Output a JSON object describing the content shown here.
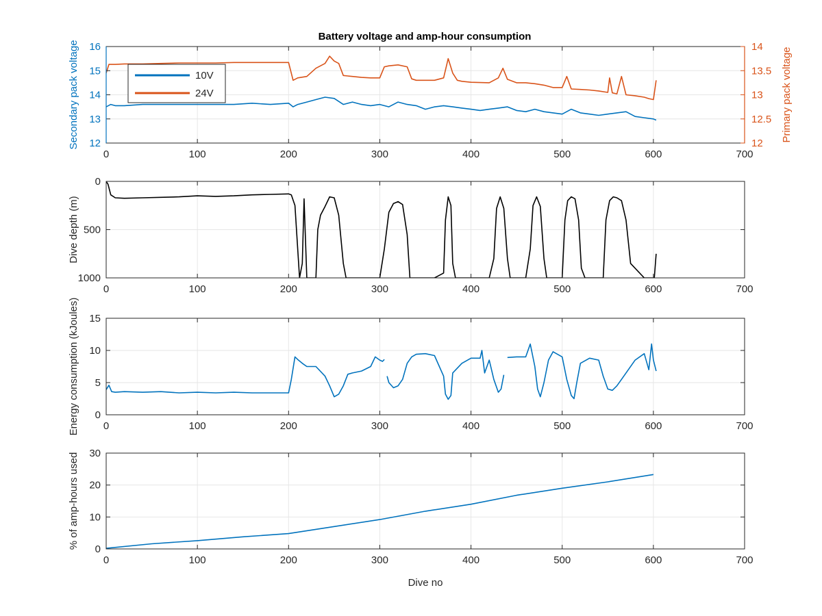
{
  "figure": {
    "title": "Battery voltage and amp-hour consumption",
    "background": "#ffffff"
  },
  "colors": {
    "blue": "#0072BD",
    "orange": "#D95319",
    "black": "#000000",
    "grid": "#e6e6e6",
    "axis": "#262626"
  },
  "chart_data": [
    {
      "type": "line",
      "title": "Battery voltage and amp-hour consumption",
      "xlabel": "",
      "xlim": [
        0,
        700
      ],
      "xticks": [
        0,
        100,
        200,
        300,
        400,
        500,
        600,
        700
      ],
      "ylabel": "Secondary pack voltage",
      "ylim": [
        12,
        16
      ],
      "yticks": [
        12,
        13,
        14,
        15,
        16
      ],
      "y2label": "Primary pack voltage",
      "y2lim": [
        12,
        14
      ],
      "y2ticks": [
        12,
        12.5,
        13,
        13.5,
        14
      ],
      "grid": true,
      "legend": "top-left",
      "series": [
        {
          "name": "10V",
          "axis": "left",
          "color": "#0072BD",
          "x": [
            0,
            5,
            10,
            20,
            40,
            60,
            80,
            100,
            120,
            140,
            160,
            180,
            200,
            205,
            210,
            220,
            230,
            240,
            250,
            260,
            270,
            280,
            290,
            300,
            310,
            320,
            330,
            340,
            350,
            360,
            370,
            380,
            390,
            400,
            410,
            420,
            430,
            440,
            450,
            460,
            470,
            480,
            490,
            500,
            510,
            520,
            530,
            540,
            550,
            560,
            570,
            580,
            590,
            600,
            603
          ],
          "values": [
            13.5,
            13.6,
            13.55,
            13.55,
            13.6,
            13.6,
            13.6,
            13.6,
            13.6,
            13.6,
            13.65,
            13.6,
            13.65,
            13.5,
            13.6,
            13.7,
            13.8,
            13.9,
            13.85,
            13.6,
            13.7,
            13.6,
            13.55,
            13.6,
            13.5,
            13.7,
            13.6,
            13.55,
            13.4,
            13.5,
            13.55,
            13.5,
            13.45,
            13.4,
            13.35,
            13.4,
            13.45,
            13.5,
            13.35,
            13.3,
            13.4,
            13.3,
            13.25,
            13.2,
            13.4,
            13.25,
            13.2,
            13.15,
            13.2,
            13.25,
            13.3,
            13.1,
            13.05,
            13.0,
            12.95
          ]
        },
        {
          "name": "24V",
          "axis": "right",
          "color": "#D95319",
          "x": [
            0,
            3,
            10,
            20,
            40,
            60,
            80,
            100,
            120,
            140,
            160,
            180,
            200,
            205,
            210,
            220,
            230,
            240,
            245,
            250,
            255,
            260,
            270,
            280,
            290,
            300,
            305,
            310,
            320,
            330,
            335,
            340,
            360,
            370,
            375,
            380,
            385,
            390,
            400,
            420,
            430,
            435,
            440,
            450,
            460,
            470,
            480,
            490,
            500,
            505,
            510,
            520,
            530,
            540,
            550,
            552,
            555,
            560,
            565,
            570,
            580,
            590,
            595,
            600,
            603
          ],
          "values": [
            13.45,
            13.63,
            13.63,
            13.64,
            13.64,
            13.65,
            13.66,
            13.66,
            13.66,
            13.67,
            13.67,
            13.67,
            13.67,
            13.3,
            13.35,
            13.38,
            13.55,
            13.65,
            13.8,
            13.7,
            13.65,
            13.4,
            13.38,
            13.36,
            13.35,
            13.35,
            13.58,
            13.6,
            13.62,
            13.58,
            13.33,
            13.3,
            13.3,
            13.35,
            13.75,
            13.45,
            13.3,
            13.28,
            13.26,
            13.25,
            13.35,
            13.55,
            13.32,
            13.25,
            13.25,
            13.23,
            13.2,
            13.15,
            13.15,
            13.38,
            13.12,
            13.11,
            13.1,
            13.08,
            13.05,
            13.35,
            13.04,
            13.02,
            13.38,
            13.0,
            12.98,
            12.95,
            12.92,
            12.9,
            13.3
          ]
        }
      ]
    },
    {
      "type": "line",
      "xlabel": "",
      "xlim": [
        0,
        700
      ],
      "xticks": [
        0,
        100,
        200,
        300,
        400,
        500,
        600,
        700
      ],
      "ylabel": "Dive depth (m)",
      "ylim": [
        1000,
        0
      ],
      "yreversed": true,
      "yticks": [
        0,
        500,
        1000
      ],
      "ytick_labels": [
        "0",
        "500",
        "1000"
      ],
      "grid": true,
      "series": [
        {
          "color": "#000000",
          "x": [
            0,
            2,
            5,
            10,
            20,
            40,
            60,
            80,
            100,
            120,
            140,
            160,
            180,
            200,
            203,
            207,
            210,
            212,
            215,
            217,
            220,
            225,
            230,
            232,
            235,
            240,
            245,
            250,
            255,
            260,
            263,
            280,
            300,
            305,
            310,
            315,
            320,
            325,
            330,
            333,
            340,
            360,
            370,
            372,
            375,
            378,
            380,
            383,
            400,
            420,
            425,
            428,
            432,
            436,
            440,
            443,
            450,
            460,
            465,
            468,
            472,
            476,
            480,
            483,
            490,
            500,
            503,
            506,
            510,
            514,
            518,
            521,
            525,
            540,
            545,
            548,
            552,
            556,
            560,
            565,
            570,
            575,
            590,
            600,
            601,
            603
          ],
          "values": [
            0,
            30,
            140,
            170,
            175,
            170,
            165,
            160,
            150,
            155,
            150,
            140,
            135,
            130,
            140,
            250,
            700,
            1000,
            850,
            180,
            1000,
            1000,
            1000,
            500,
            350,
            260,
            160,
            170,
            350,
            850,
            1000,
            1000,
            1000,
            700,
            320,
            230,
            210,
            240,
            550,
            1000,
            1000,
            1000,
            950,
            400,
            160,
            250,
            850,
            1000,
            1000,
            1000,
            800,
            280,
            160,
            280,
            800,
            1000,
            1000,
            1000,
            700,
            250,
            160,
            260,
            800,
            1000,
            1000,
            1000,
            400,
            200,
            160,
            180,
            400,
            900,
            1000,
            1000,
            1000,
            400,
            200,
            160,
            170,
            200,
            400,
            850,
            1000,
            1000,
            1000,
            750
          ]
        }
      ]
    },
    {
      "type": "line",
      "xlabel": "",
      "xlim": [
        0,
        700
      ],
      "xticks": [
        0,
        100,
        200,
        300,
        400,
        500,
        600,
        700
      ],
      "ylabel": "Energy consumption (kJoules)",
      "ylim": [
        0,
        15
      ],
      "yticks": [
        0,
        5,
        10,
        15
      ],
      "grid": true,
      "series": [
        {
          "color": "#0072BD",
          "segments": [
            {
              "x": [
                0,
                3,
                6,
                10,
                20,
                40,
                60,
                80,
                100,
                120,
                140,
                160,
                180,
                200,
                203,
                207,
                210,
                215,
                220,
                230,
                240,
                245,
                250,
                255,
                260,
                265,
                270,
                280,
                290,
                295,
                300,
                303,
                305
              ],
              "values": [
                3.9,
                4.6,
                3.6,
                3.5,
                3.6,
                3.5,
                3.6,
                3.4,
                3.5,
                3.4,
                3.5,
                3.4,
                3.4,
                3.4,
                5.5,
                9.0,
                8.6,
                8.0,
                7.5,
                7.5,
                6.0,
                4.5,
                2.8,
                3.2,
                4.5,
                6.3,
                6.5,
                6.8,
                7.5,
                9.0,
                8.5,
                8.3,
                8.6
              ]
            },
            {
              "x": [
                308,
                310,
                315,
                320,
                325,
                330,
                335,
                340,
                350,
                360,
                370,
                372,
                375,
                378,
                380,
                390,
                400,
                410,
                412,
                415,
                420,
                425,
                430,
                433,
                436
              ],
              "values": [
                6.0,
                5.0,
                4.2,
                4.5,
                5.5,
                8.0,
                9.0,
                9.4,
                9.5,
                9.2,
                6.0,
                3.2,
                2.4,
                3.0,
                6.5,
                8.0,
                8.8,
                8.8,
                10.0,
                6.5,
                8.5,
                5.5,
                3.5,
                4.0,
                6.2
              ]
            },
            {
              "x": [
                440,
                450,
                460,
                465,
                470,
                473,
                476,
                480,
                485,
                490,
                500,
                505,
                510,
                513,
                516,
                520,
                530,
                540,
                545,
                550,
                555,
                560,
                565,
                570,
                580,
                590,
                595,
                598,
                600,
                603
              ],
              "values": [
                8.9,
                9.0,
                9.0,
                11.0,
                7.5,
                4.0,
                2.8,
                5.0,
                8.5,
                9.8,
                9.0,
                5.5,
                3.0,
                2.5,
                5.0,
                8.0,
                8.8,
                8.5,
                6.0,
                4.0,
                3.8,
                4.5,
                5.5,
                6.5,
                8.5,
                9.5,
                7.0,
                11.0,
                8.5,
                6.8
              ]
            }
          ]
        }
      ]
    },
    {
      "type": "line",
      "xlabel": "Dive no",
      "xlim": [
        0,
        700
      ],
      "xticks": [
        0,
        100,
        200,
        300,
        400,
        500,
        600,
        700
      ],
      "ylabel": "% of amp-hours used",
      "ylim": [
        0,
        30
      ],
      "yticks": [
        0,
        10,
        20,
        30
      ],
      "grid": true,
      "series": [
        {
          "color": "#0072BD",
          "x": [
            0,
            50,
            100,
            150,
            200,
            250,
            300,
            350,
            400,
            450,
            500,
            550,
            600
          ],
          "values": [
            0.2,
            1.6,
            2.6,
            3.8,
            4.8,
            7.0,
            9.2,
            11.8,
            14.0,
            16.8,
            19.0,
            21.0,
            23.3
          ]
        }
      ]
    }
  ]
}
